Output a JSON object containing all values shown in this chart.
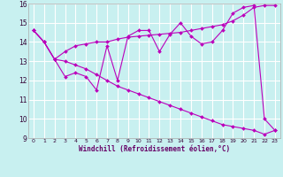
{
  "xlabel": "Windchill (Refroidissement éolien,°C)",
  "background_color": "#c8f0f0",
  "line_color": "#bb00bb",
  "grid_color": "#ffffff",
  "xlim": [
    -0.5,
    23.5
  ],
  "ylim": [
    9,
    16
  ],
  "xticks": [
    0,
    1,
    2,
    3,
    4,
    5,
    6,
    7,
    8,
    9,
    10,
    11,
    12,
    13,
    14,
    15,
    16,
    17,
    18,
    19,
    20,
    21,
    22,
    23
  ],
  "yticks": [
    9,
    10,
    11,
    12,
    13,
    14,
    15,
    16
  ],
  "line1_x": [
    0,
    1,
    2,
    3,
    4,
    5,
    6,
    7,
    8,
    9,
    10,
    11,
    12,
    13,
    14,
    15,
    16,
    17,
    18,
    19,
    20,
    21,
    22,
    23
  ],
  "line1_y": [
    14.6,
    14.0,
    13.1,
    12.2,
    12.4,
    12.2,
    11.5,
    13.8,
    12.0,
    14.3,
    14.6,
    14.6,
    13.5,
    14.4,
    15.0,
    14.3,
    13.9,
    14.0,
    14.6,
    15.5,
    15.8,
    15.9,
    10.0,
    9.4
  ],
  "line2_x": [
    0,
    1,
    2,
    3,
    4,
    5,
    6,
    7,
    8,
    9,
    10,
    11,
    12,
    13,
    14,
    15,
    16,
    17,
    18,
    19,
    20,
    21,
    22,
    23
  ],
  "line2_y": [
    14.6,
    14.0,
    13.1,
    13.0,
    12.8,
    12.6,
    12.3,
    12.0,
    11.7,
    11.5,
    11.3,
    11.1,
    10.9,
    10.7,
    10.5,
    10.3,
    10.1,
    9.9,
    9.7,
    9.6,
    9.5,
    9.4,
    9.2,
    9.4
  ],
  "line3_x": [
    0,
    1,
    2,
    3,
    4,
    5,
    6,
    7,
    8,
    9,
    10,
    11,
    12,
    13,
    14,
    15,
    16,
    17,
    18,
    19,
    20,
    21,
    22,
    23
  ],
  "line3_y": [
    14.6,
    14.0,
    13.1,
    13.5,
    13.8,
    13.9,
    14.0,
    14.0,
    14.15,
    14.25,
    14.3,
    14.35,
    14.4,
    14.45,
    14.5,
    14.6,
    14.7,
    14.8,
    14.9,
    15.1,
    15.4,
    15.8,
    15.9,
    15.9
  ]
}
